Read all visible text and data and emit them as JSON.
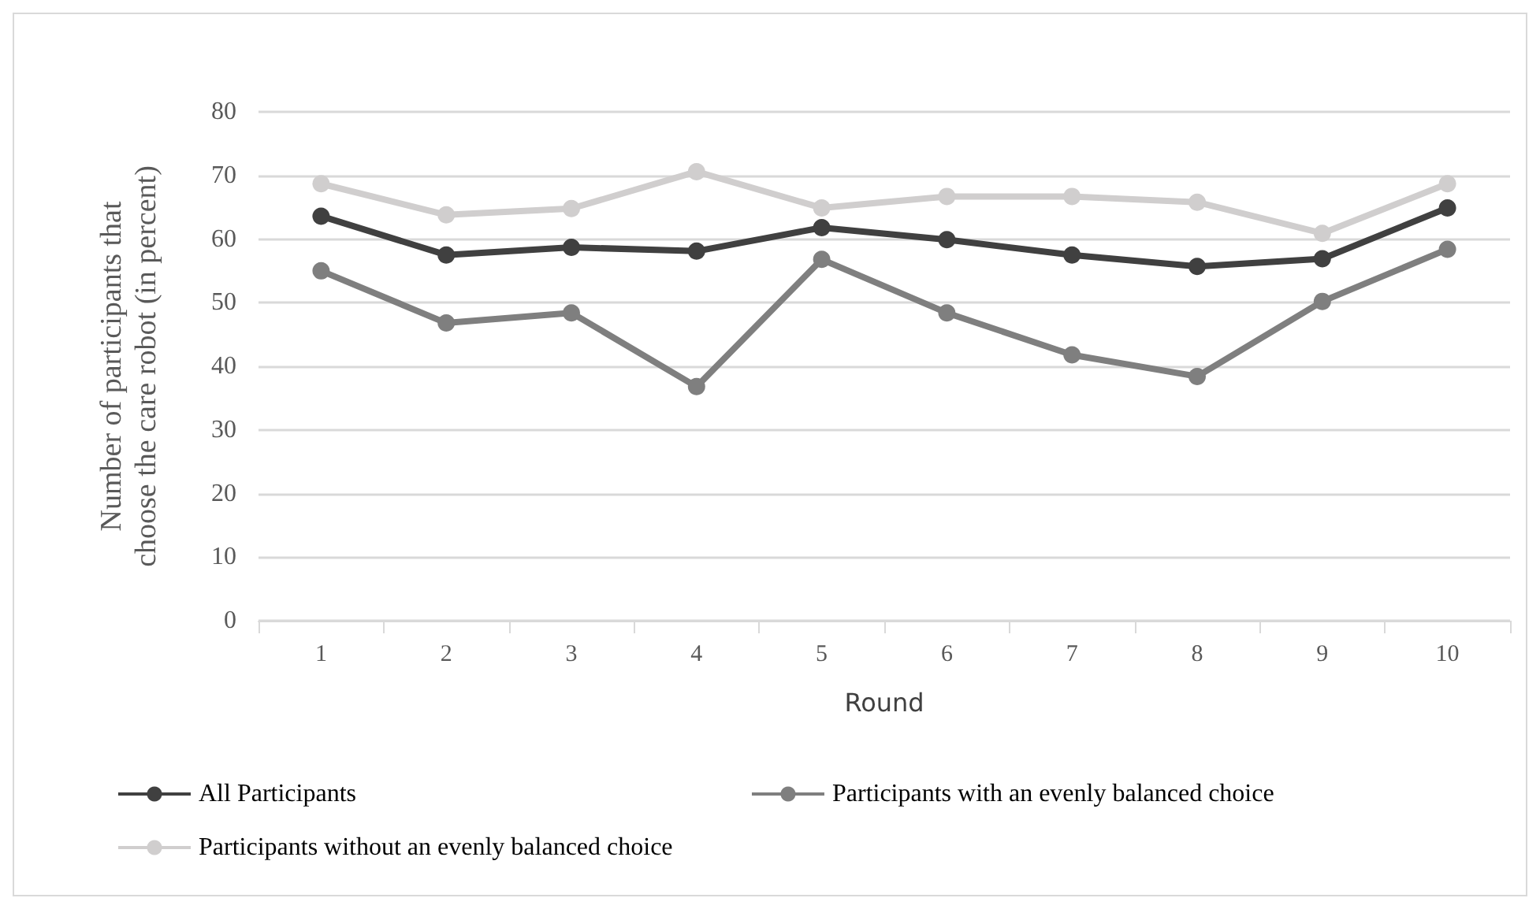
{
  "chart_data": {
    "type": "line",
    "xlabel": "Round",
    "ylabel": "Number of participants that\nchoose the care robot (in percent)",
    "categories": [
      "1",
      "2",
      "3",
      "4",
      "5",
      "6",
      "7",
      "8",
      "9",
      "10"
    ],
    "series": [
      {
        "name": "All Participants",
        "color": "#404040",
        "values": [
          63.6,
          57.5,
          58.7,
          58.1,
          61.8,
          59.9,
          57.5,
          55.7,
          56.9,
          64.9
        ]
      },
      {
        "name": "Participants with an evenly balanced choice",
        "color": "#7f7f7f",
        "values": [
          55.0,
          46.8,
          48.4,
          36.8,
          56.8,
          48.4,
          41.8,
          38.4,
          50.2,
          58.4
        ]
      },
      {
        "name": "Participants without an evenly balanced choice",
        "color": "#d0cece",
        "values": [
          68.7,
          63.8,
          64.8,
          70.6,
          64.9,
          66.7,
          66.7,
          65.8,
          60.9,
          68.7
        ]
      }
    ],
    "ylim": [
      0,
      80
    ],
    "yticks": [
      0,
      10,
      20,
      30,
      40,
      50,
      60,
      70,
      80
    ],
    "grid": "y",
    "legend": "bottom",
    "marker": "circle",
    "line_style": "solid"
  }
}
